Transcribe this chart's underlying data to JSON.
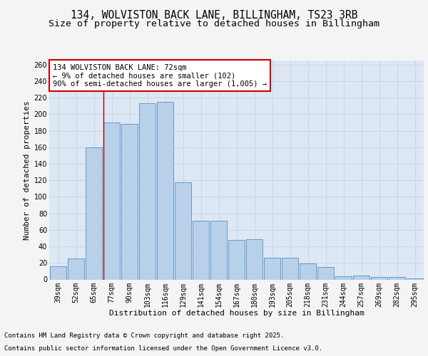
{
  "title_line1": "134, WOLVISTON BACK LANE, BILLINGHAM, TS23 3RB",
  "title_line2": "Size of property relative to detached houses in Billingham",
  "xlabel": "Distribution of detached houses by size in Billingham",
  "ylabel": "Number of detached properties",
  "categories": [
    "39sqm",
    "52sqm",
    "65sqm",
    "77sqm",
    "90sqm",
    "103sqm",
    "116sqm",
    "129sqm",
    "141sqm",
    "154sqm",
    "167sqm",
    "180sqm",
    "193sqm",
    "205sqm",
    "218sqm",
    "231sqm",
    "244sqm",
    "257sqm",
    "269sqm",
    "282sqm",
    "295sqm"
  ],
  "values": [
    16,
    25,
    160,
    190,
    188,
    213,
    215,
    118,
    71,
    71,
    48,
    49,
    26,
    26,
    19,
    15,
    4,
    5,
    3,
    3,
    1
  ],
  "bar_color": "#b8d0e8",
  "bar_edge_color": "#6699cc",
  "vline_x": 2.54,
  "vline_color": "#aa0000",
  "annotation_text": "134 WOLVISTON BACK LANE: 72sqm\n← 9% of detached houses are smaller (102)\n90% of semi-detached houses are larger (1,005) →",
  "annotation_box_facecolor": "#ffffff",
  "annotation_box_edgecolor": "#cc0000",
  "plot_bg_color": "#dde8f4",
  "grid_color": "#c8d8ea",
  "ylim": [
    0,
    265
  ],
  "yticks": [
    0,
    20,
    40,
    60,
    80,
    100,
    120,
    140,
    160,
    180,
    200,
    220,
    240,
    260
  ],
  "footer_line1": "Contains HM Land Registry data © Crown copyright and database right 2025.",
  "footer_line2": "Contains public sector information licensed under the Open Government Licence v3.0.",
  "title_fontsize": 10.5,
  "subtitle_fontsize": 9.5,
  "axis_label_fontsize": 8,
  "tick_fontsize": 7,
  "annotation_fontsize": 7.5,
  "footer_fontsize": 6.5,
  "fig_facecolor": "#f4f4f4"
}
